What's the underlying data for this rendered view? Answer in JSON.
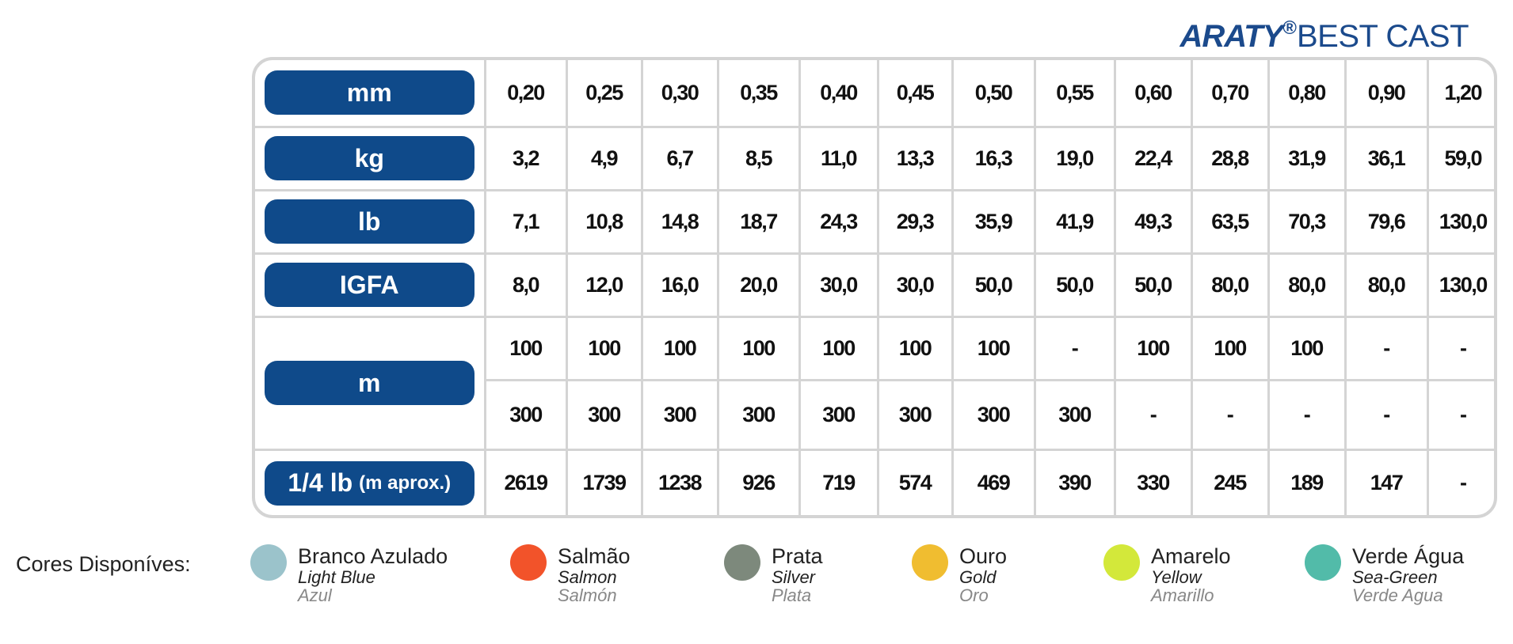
{
  "brand": {
    "name": "ARATY",
    "registered": "®",
    "product": "BEST CAST",
    "color": "#1b4a8c"
  },
  "table": {
    "rows": [
      {
        "label": "mm",
        "values": [
          "0,20",
          "0,25",
          "0,30",
          "0,35",
          "0,40",
          "0,45",
          "0,50",
          "0,55",
          "0,60",
          "0,70",
          "0,80",
          "0,90",
          "1,20"
        ]
      },
      {
        "label": "kg",
        "values": [
          "3,2",
          "4,9",
          "6,7",
          "8,5",
          "11,0",
          "13,3",
          "16,3",
          "19,0",
          "22,4",
          "28,8",
          "31,9",
          "36,1",
          "59,0"
        ]
      },
      {
        "label": "lb",
        "values": [
          "7,1",
          "10,8",
          "14,8",
          "18,7",
          "24,3",
          "29,3",
          "35,9",
          "41,9",
          "49,3",
          "63,5",
          "70,3",
          "79,6",
          "130,0"
        ]
      },
      {
        "label": "IGFA",
        "values": [
          "8,0",
          "12,0",
          "16,0",
          "20,0",
          "30,0",
          "30,0",
          "50,0",
          "50,0",
          "50,0",
          "80,0",
          "80,0",
          "80,0",
          "130,0"
        ]
      },
      {
        "label": "m",
        "values": [
          "100",
          "100",
          "100",
          "100",
          "100",
          "100",
          "100",
          "-",
          "100",
          "100",
          "100",
          "-",
          "-"
        ]
      },
      {
        "label": "",
        "values": [
          "300",
          "300",
          "300",
          "300",
          "300",
          "300",
          "300",
          "300",
          "-",
          "-",
          "-",
          "-",
          "-"
        ]
      },
      {
        "label": "1/4 lb",
        "label_small": "(m aprox.)",
        "values": [
          "2619",
          "1739",
          "1238",
          "926",
          "719",
          "574",
          "469",
          "390",
          "330",
          "245",
          "189",
          "147",
          "-"
        ]
      }
    ],
    "label_color": "#0f4a8a",
    "border_color": "#d4d4d4"
  },
  "colors": {
    "label": "Cores Disponíves:",
    "items": [
      {
        "pt": "Branco Azulado",
        "en": "Light Blue",
        "es": "Azul",
        "color": "#9bc3cb"
      },
      {
        "pt": "Salmão",
        "en": "Salmon",
        "es": "Salmón",
        "color": "#f2532a"
      },
      {
        "pt": "Prata",
        "en": "Silver",
        "es": "Plata",
        "color": "#7d897c"
      },
      {
        "pt": "Ouro",
        "en": "Gold",
        "es": "Oro",
        "color": "#f0bd30"
      },
      {
        "pt": "Amarelo",
        "en": "Yellow",
        "es": "Amarillo",
        "color": "#d3e83a"
      },
      {
        "pt": "Verde Água",
        "en": "Sea-Green",
        "es": "Verde Agua",
        "color": "#52bba9"
      }
    ]
  }
}
